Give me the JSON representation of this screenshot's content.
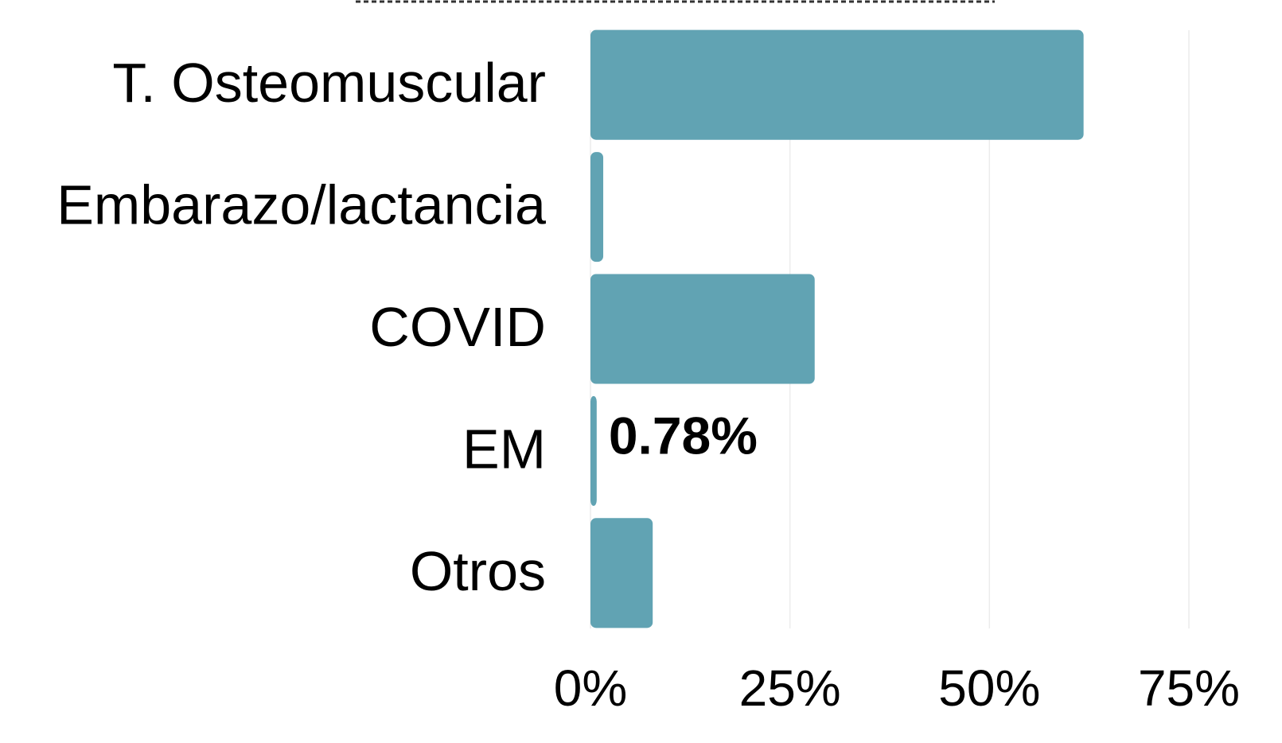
{
  "chart_data": {
    "type": "bar",
    "orientation": "horizontal",
    "categories": [
      "T. Osteomuscular",
      "Embarazo/lactancia",
      "COVID",
      "EM",
      "Otros"
    ],
    "values": [
      61.8,
      1.6,
      28.1,
      0.78,
      7.8
    ],
    "value_labels": [
      null,
      null,
      null,
      "0.78%",
      null
    ],
    "color": "#61a3b3",
    "xlim": [
      0,
      75
    ],
    "xticks": [
      {
        "value": 0,
        "label": "0%"
      },
      {
        "value": 25,
        "label": "25%"
      },
      {
        "value": 50,
        "label": "50%"
      },
      {
        "value": 75,
        "label": "75%"
      }
    ],
    "grid": true
  }
}
